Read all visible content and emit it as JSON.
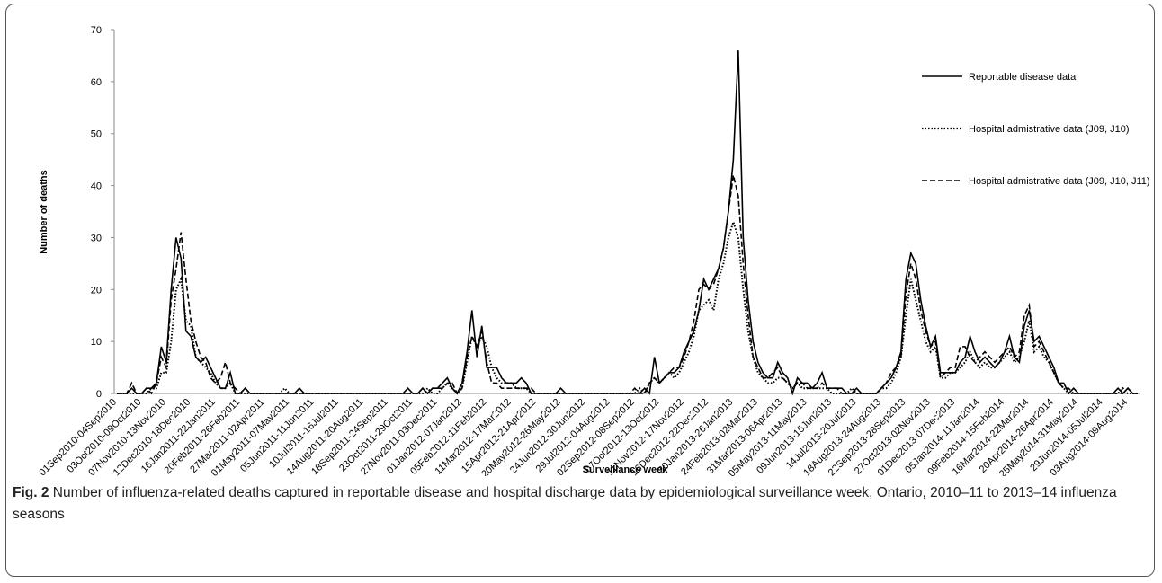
{
  "chart_data": {
    "type": "line",
    "y_label": "Number of deaths",
    "x_label": "Surveillance week",
    "ylim": [
      0,
      70
    ],
    "yticks": [
      0,
      10,
      20,
      30,
      40,
      50,
      60,
      70
    ],
    "grid": false,
    "legend": "upper right",
    "categories": [
      "01Sep2010-04Sep2010",
      null,
      null,
      null,
      null,
      "03Oct2010-09Oct2010",
      null,
      null,
      null,
      null,
      "07Nov2010-13Nov2010",
      null,
      null,
      null,
      null,
      "12Dec2010-18Dec2010",
      null,
      null,
      null,
      null,
      "16Jan2011-22Jan2011",
      null,
      null,
      null,
      null,
      "20Feb2011-26Feb2011",
      null,
      null,
      null,
      null,
      "27Mar2011-02Apr2011",
      null,
      null,
      null,
      null,
      "01May2011-07May2011",
      null,
      null,
      null,
      null,
      "05Jun2011-11Jun2011",
      null,
      null,
      null,
      null,
      "10Jul2011-16Jul2011",
      null,
      null,
      null,
      null,
      "14Aug2011-20Aug2011",
      null,
      null,
      null,
      null,
      "18Sep2011-24Sep2011",
      null,
      null,
      null,
      null,
      "23Oct2011-29Oct2011",
      null,
      null,
      null,
      null,
      "27Nov2011-03Dec2011",
      null,
      null,
      null,
      null,
      "01Jan2012-07Jan2012",
      null,
      null,
      null,
      null,
      "05Feb2012-11Feb2012",
      null,
      null,
      null,
      null,
      "11Mar2012-17Mar2012",
      null,
      null,
      null,
      null,
      "15Apr2012-21Apr2012",
      null,
      null,
      null,
      null,
      "20May2012-26May2012",
      null,
      null,
      null,
      null,
      "24Jun2012-30Jun2012",
      null,
      null,
      null,
      null,
      "29Jul2012-04Aug2012",
      null,
      null,
      null,
      null,
      "02Sep2012-08Sep2012",
      null,
      null,
      null,
      null,
      "07Oct2012-13Oct2012",
      null,
      null,
      null,
      null,
      "11Nov2012-17Nov2012",
      null,
      null,
      null,
      null,
      "16Dec2012-22Dec2012",
      null,
      null,
      null,
      null,
      "20Jan2013-26Jan2013",
      null,
      null,
      null,
      null,
      "24Feb2013-02Mar2013",
      null,
      null,
      null,
      null,
      "31Mar2013-06Apr2013",
      null,
      null,
      null,
      null,
      "05May2013-11May2013",
      null,
      null,
      null,
      null,
      "09Jun2013-15Jun2013",
      null,
      null,
      null,
      null,
      "14Jul2013-20Jul2013",
      null,
      null,
      null,
      null,
      "18Aug2013-24Aug2013",
      null,
      null,
      null,
      null,
      "22Sep2013-28Sep2013",
      null,
      null,
      null,
      null,
      "27Oct2013-02Nov2013",
      null,
      null,
      null,
      null,
      "01Dec2013-07Dec2013",
      null,
      null,
      null,
      null,
      "05Jan2014-11Jan2014",
      null,
      null,
      null,
      null,
      "09Feb2014-15Feb2014",
      null,
      null,
      null,
      null,
      "16Mar2014-22Mar2014",
      null,
      null,
      null,
      null,
      "20Apr2014-26Apr2014",
      null,
      null,
      null,
      null,
      "25May2014-31May2014",
      null,
      null,
      null,
      null,
      "29Jun2014-05Jul2014",
      null,
      null,
      null,
      null,
      "03Aug2014-09Aug2014",
      null,
      null
    ],
    "series": [
      {
        "name": "Reportable disease data",
        "color": "#000000",
        "style": "solid",
        "values": [
          0,
          0,
          0,
          1,
          0,
          0,
          1,
          1,
          2,
          9,
          6,
          20,
          30,
          26,
          12,
          11,
          7,
          6,
          7,
          5,
          3,
          1,
          1,
          4,
          0,
          0,
          1,
          0,
          0,
          0,
          0,
          0,
          0,
          0,
          0,
          0,
          0,
          1,
          0,
          0,
          0,
          0,
          0,
          0,
          0,
          0,
          0,
          0,
          0,
          0,
          0,
          0,
          0,
          0,
          0,
          0,
          0,
          0,
          0,
          1,
          0,
          0,
          1,
          0,
          1,
          1,
          2,
          3,
          1,
          0,
          2,
          8,
          16,
          7,
          13,
          5,
          5,
          5,
          3,
          2,
          2,
          2,
          3,
          2,
          0,
          0,
          0,
          0,
          0,
          0,
          1,
          0,
          0,
          0,
          0,
          0,
          0,
          0,
          0,
          0,
          0,
          0,
          0,
          0,
          0,
          0,
          0,
          1,
          0,
          7,
          2,
          3,
          4,
          4,
          5,
          8,
          10,
          12,
          16,
          22,
          20,
          22,
          24,
          28,
          35,
          45,
          66,
          30,
          18,
          10,
          6,
          4,
          3,
          3,
          6,
          4,
          3,
          0,
          3,
          2,
          2,
          1,
          2,
          4,
          1,
          1,
          1,
          1,
          0,
          0,
          1,
          0,
          0,
          0,
          0,
          1,
          2,
          3,
          5,
          8,
          22,
          27,
          25,
          18,
          13,
          9,
          11,
          4,
          4,
          4,
          4,
          6,
          7,
          11,
          8,
          6,
          7,
          6,
          5,
          6,
          8,
          11,
          7,
          6,
          13,
          16,
          10,
          11,
          9,
          7,
          5,
          2,
          2,
          0,
          1,
          0,
          0,
          0,
          0,
          0,
          0,
          0,
          0,
          1,
          0,
          1,
          0,
          0
        ]
      },
      {
        "name": "Hospital admistrative data (J09, J10)",
        "color": "#000000",
        "style": "dotted",
        "values": [
          0,
          0,
          0,
          0,
          0,
          0,
          0,
          1,
          1,
          4,
          4,
          10,
          20,
          22,
          14,
          13,
          7,
          6,
          5,
          4,
          2,
          1,
          1,
          2,
          0,
          0,
          0,
          0,
          0,
          0,
          0,
          0,
          0,
          0,
          1,
          0,
          0,
          0,
          0,
          0,
          0,
          0,
          0,
          0,
          0,
          0,
          0,
          0,
          0,
          0,
          0,
          0,
          0,
          0,
          0,
          0,
          0,
          0,
          0,
          0,
          0,
          0,
          0,
          1,
          0,
          0,
          1,
          2,
          1,
          0,
          1,
          6,
          11,
          9,
          11,
          9,
          5,
          3,
          2,
          2,
          2,
          1,
          1,
          1,
          0,
          0,
          0,
          0,
          0,
          0,
          0,
          0,
          0,
          0,
          0,
          0,
          0,
          0,
          0,
          0,
          0,
          0,
          0,
          0,
          0,
          0,
          1,
          0,
          2,
          3,
          2,
          3,
          4,
          3,
          4,
          6,
          8,
          11,
          16,
          17,
          18,
          16,
          22,
          25,
          30,
          33,
          30,
          20,
          12,
          7,
          4,
          3,
          2,
          2,
          3,
          3,
          2,
          1,
          2,
          1,
          1,
          1,
          1,
          1,
          1,
          0,
          0,
          0,
          0,
          1,
          0,
          0,
          0,
          0,
          0,
          1,
          1,
          2,
          4,
          7,
          15,
          22,
          18,
          14,
          10,
          8,
          9,
          3,
          3,
          4,
          4,
          5,
          6,
          8,
          6,
          5,
          6,
          5,
          5,
          6,
          7,
          8,
          6,
          7,
          10,
          14,
          8,
          9,
          7,
          6,
          4,
          2,
          1,
          0,
          0,
          0,
          0,
          0,
          0,
          0,
          0,
          0,
          0,
          0,
          1,
          0,
          0,
          0
        ]
      },
      {
        "name": "Hospital admistrative data (J09, J10, J11)",
        "color": "#000000",
        "style": "dashed",
        "values": [
          0,
          0,
          0,
          2,
          0,
          0,
          1,
          0,
          2,
          7,
          5,
          18,
          24,
          31,
          22,
          14,
          10,
          7,
          6,
          3,
          2,
          3,
          6,
          2,
          1,
          0,
          1,
          0,
          0,
          0,
          0,
          0,
          0,
          0,
          0,
          0,
          0,
          0,
          0,
          0,
          0,
          0,
          0,
          0,
          0,
          0,
          0,
          0,
          0,
          0,
          0,
          0,
          0,
          0,
          0,
          0,
          0,
          0,
          0,
          0,
          0,
          0,
          1,
          0,
          1,
          1,
          1,
          2,
          2,
          0,
          1,
          7,
          11,
          9,
          12,
          6,
          2,
          2,
          1,
          1,
          1,
          1,
          1,
          1,
          1,
          0,
          0,
          0,
          0,
          0,
          0,
          0,
          0,
          0,
          0,
          0,
          0,
          0,
          0,
          0,
          0,
          0,
          0,
          0,
          0,
          1,
          0,
          0,
          2,
          3,
          2,
          3,
          4,
          5,
          5,
          7,
          10,
          14,
          20,
          21,
          20,
          21,
          24,
          28,
          35,
          42,
          38,
          25,
          15,
          7,
          5,
          3,
          3,
          4,
          5,
          3,
          2,
          1,
          2,
          2,
          1,
          1,
          1,
          2,
          1,
          1,
          1,
          0,
          0,
          0,
          0,
          0,
          0,
          0,
          0,
          1,
          2,
          4,
          5,
          7,
          19,
          25,
          22,
          16,
          12,
          9,
          10,
          3,
          4,
          5,
          5,
          9,
          9,
          7,
          6,
          7,
          8,
          7,
          6,
          7,
          8,
          9,
          7,
          8,
          15,
          17,
          9,
          10,
          8,
          6,
          4,
          2,
          1,
          1,
          0,
          0,
          0,
          0,
          0,
          0,
          0,
          0,
          0,
          0,
          0,
          1,
          0,
          0
        ]
      }
    ]
  },
  "caption": {
    "label": "Fig. 2",
    "text": "Number of influenza-related deaths captured in reportable disease and hospital discharge data by epidemiological surveillance week, Ontario, 2010–11 to 2013–14 influenza seasons"
  }
}
